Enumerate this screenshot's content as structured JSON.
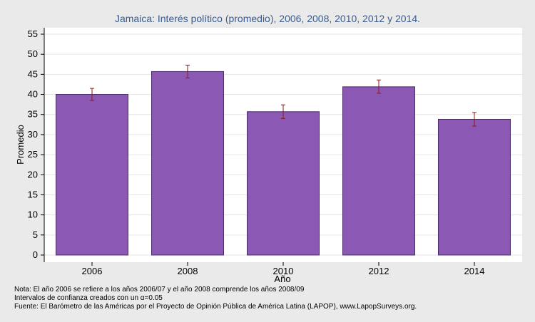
{
  "chart_data": {
    "type": "bar",
    "title": "Jamaica: Interés político (promedio), 2006, 2008, 2010, 2012 y 2014.",
    "xlabel": "Año",
    "ylabel": "Promedio",
    "categories": [
      "2006",
      "2008",
      "2010",
      "2012",
      "2014"
    ],
    "values": [
      40.0,
      45.7,
      35.7,
      41.9,
      33.8
    ],
    "error_low": [
      38.5,
      44.1,
      34.0,
      40.3,
      32.1
    ],
    "error_high": [
      41.5,
      47.3,
      37.4,
      43.6,
      35.5
    ],
    "ylim": [
      0,
      57
    ],
    "yticks": [
      0,
      5,
      10,
      15,
      20,
      25,
      30,
      35,
      40,
      45,
      50,
      55
    ],
    "grid": true,
    "bar_color": "#8b58b4",
    "error_color": "#8b1a1a"
  },
  "notes": {
    "line1": "Nota: El año 2006 se refiere a los años 2006/07 y el año 2008 comprende los años 2008/09",
    "line2": "Intervalos de confianza creados con un α=0.05",
    "line3": "Fuente: El Barómetro de las Américas por el Proyecto de Opinión Pública de América Latina (LAPOP), www.LapopSurveys.org."
  }
}
